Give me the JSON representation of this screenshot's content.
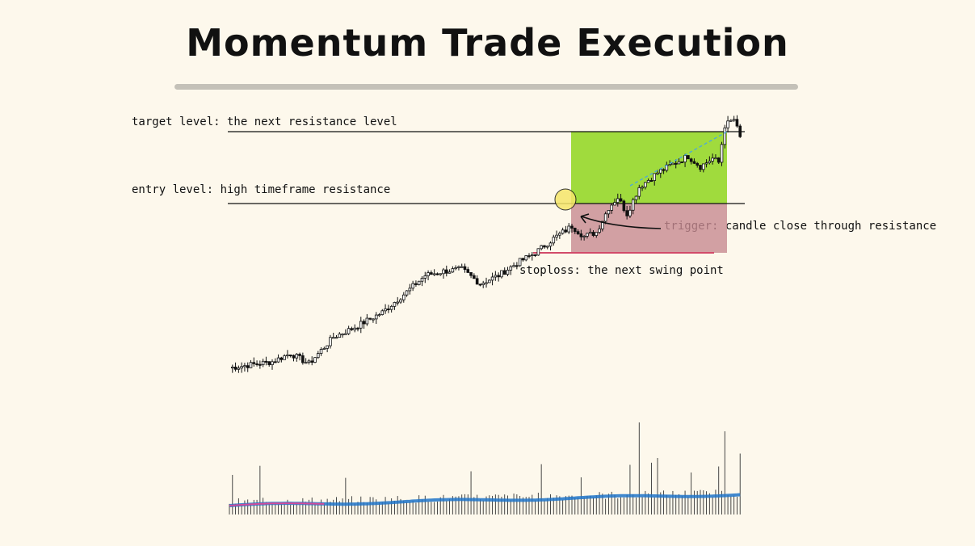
{
  "title": "Momentum Trade Execution",
  "annotations": {
    "target": "target level: the next resistance level",
    "entry": "entry level: high timeframe resistance",
    "trigger": "trigger: candle close through resistance",
    "stoploss": "stoploss: the next swing point"
  },
  "colors": {
    "background": "#fdf8ec",
    "candle": "#111111",
    "profit_zone": "#8fd61f",
    "loss_zone": "#c78a91",
    "stoploss_line": "#d24b6a",
    "entry_highlight": "#f5e66a",
    "projection": "#4aa8e0",
    "volume_ma": "#1f74c9",
    "volume_ma_early": "#d24b9a"
  },
  "chart_data": {
    "type": "candlestick",
    "levels": {
      "target": 1.0,
      "entry": 0.65,
      "stoploss": 0.4
    },
    "price_range": [
      -0.18,
      1.1
    ],
    "candles": 160,
    "volume_panel": true,
    "legend": "none",
    "grid": false
  }
}
